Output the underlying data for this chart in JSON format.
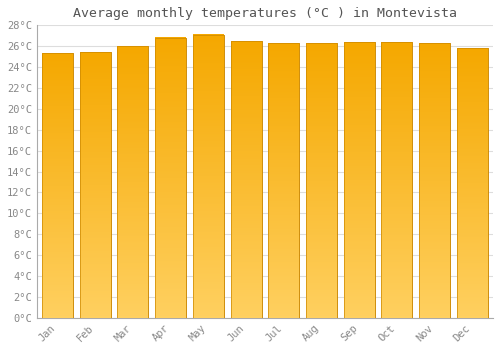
{
  "title": "Average monthly temperatures (°C ) in Montevista",
  "months": [
    "Jan",
    "Feb",
    "Mar",
    "Apr",
    "May",
    "Jun",
    "Jul",
    "Aug",
    "Sep",
    "Oct",
    "Nov",
    "Dec"
  ],
  "values": [
    25.3,
    25.4,
    26.0,
    26.8,
    27.1,
    26.5,
    26.3,
    26.3,
    26.4,
    26.4,
    26.3,
    25.8
  ],
  "bar_color_top": "#F5A800",
  "bar_color_bottom": "#FFD060",
  "bar_edge_color": "#CC8800",
  "background_color": "#FFFFFF",
  "grid_color": "#DDDDDD",
  "title_color": "#555555",
  "label_color": "#888888",
  "ylim": [
    0,
    28
  ],
  "ytick_step": 2,
  "title_fontsize": 9.5,
  "tick_fontsize": 7.5,
  "bar_width": 0.82
}
